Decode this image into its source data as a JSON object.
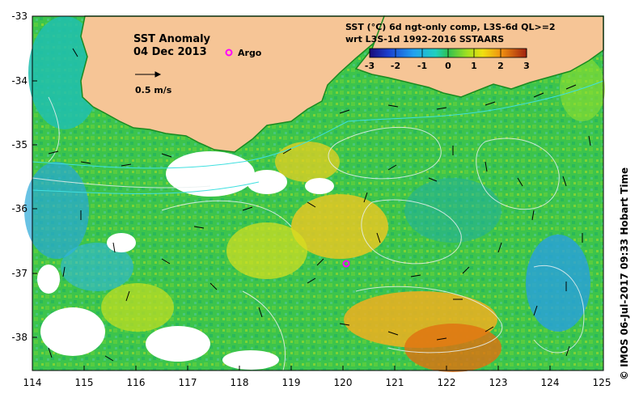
{
  "title": "SST Anomaly",
  "date": "04 Dec 2013",
  "argo_label": "Argo",
  "velocity_scale_label": "0.5 m/s",
  "product_line1": "SST (°C) 6d ngt-only comp, L3S-6d QL>=2",
  "product_line2": "wrt L3S-1d 1992-2016 SSTAARS",
  "colorbar_ticks": [
    "-3",
    "-2",
    "-1",
    "0",
    "1",
    "2",
    "3"
  ],
  "credit": "© IMOS 06-Jul-2017 09:33 Hobart Time",
  "lon_ticks": [
    "114",
    "115",
    "116",
    "117",
    "118",
    "119",
    "120",
    "121",
    "122",
    "123",
    "124",
    "125"
  ],
  "lat_ticks": [
    "-33",
    "-34",
    "-35",
    "-36",
    "-37",
    "-38"
  ],
  "colors": {
    "land": "#f6c596",
    "ocean_base": "#30c050",
    "argo_marker": "#ff00ff",
    "contour": "#e8f0f0",
    "coast_contour": "#40e0e0"
  }
}
